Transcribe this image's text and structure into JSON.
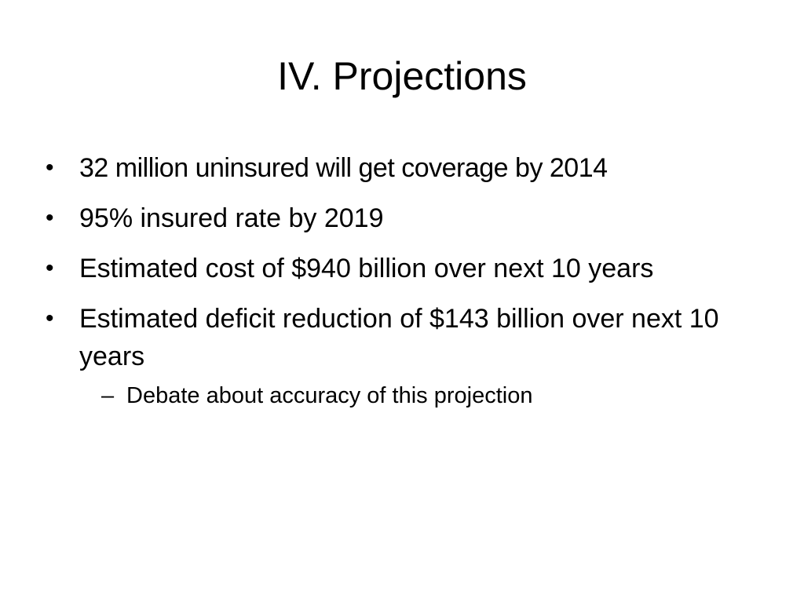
{
  "slide": {
    "title": "IV. Projections",
    "bullets": [
      {
        "symbol": "•",
        "text": "32 million uninsured will get coverage by 2014"
      },
      {
        "symbol": "•",
        "text": "95% insured rate by 2019"
      },
      {
        "symbol": "•",
        "text": "Estimated cost of $940 billion over next 10 years"
      },
      {
        "symbol": "•",
        "text": "Estimated deficit reduction of $143 billion over next 10 years",
        "sub_bullets": [
          {
            "symbol": "–",
            "text": "Debate about accuracy of this projection"
          }
        ]
      }
    ]
  }
}
